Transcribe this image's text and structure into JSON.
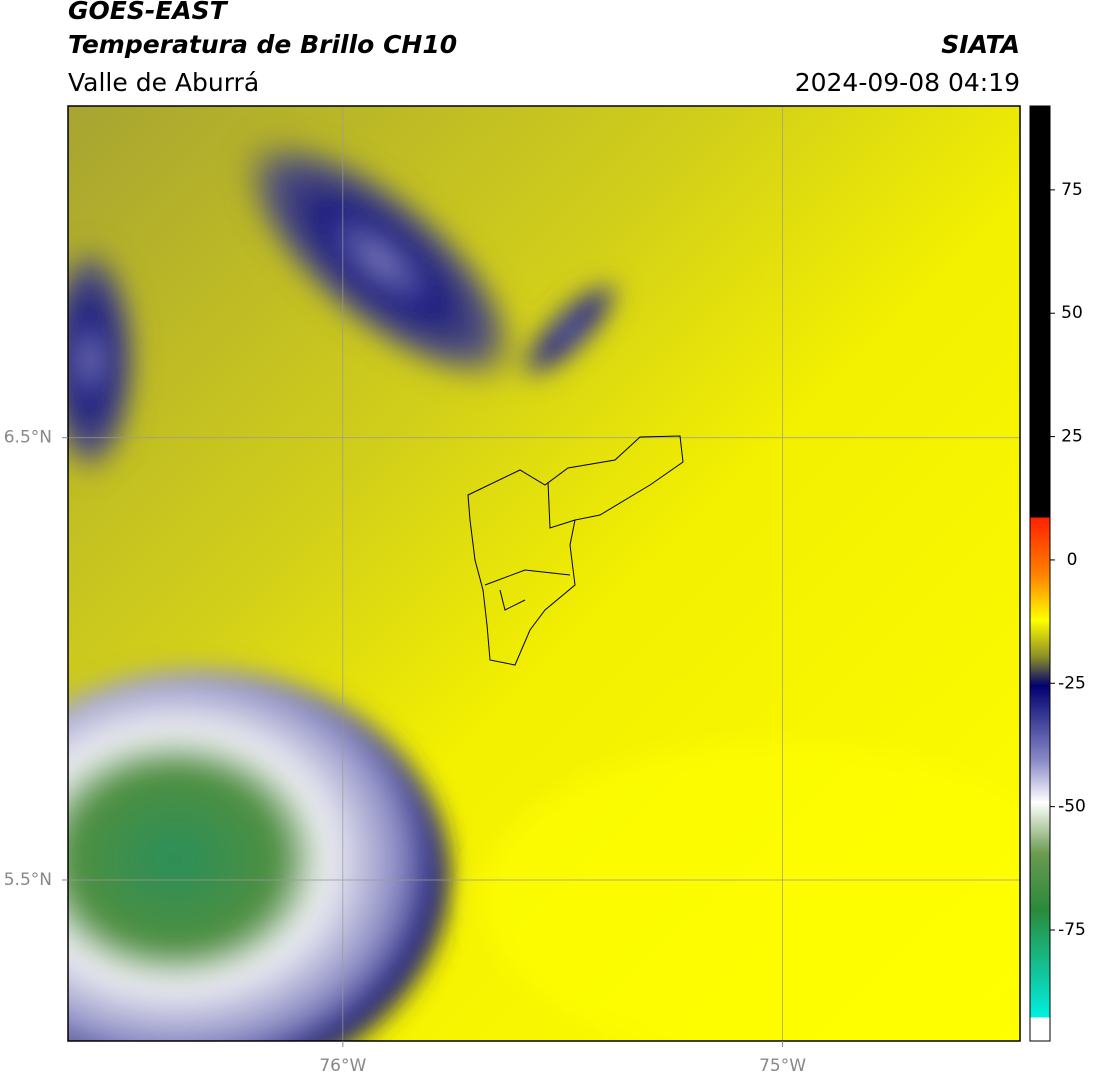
{
  "header": {
    "satellite": "GOES-EAST",
    "product": "Temperatura de Brillo CH10",
    "agency": "SIATA",
    "region": "Valle de Aburrá",
    "datetime": "2024-09-08 04:19"
  },
  "map": {
    "xlim": [
      -76.625,
      -74.46
    ],
    "ylim": [
      5.136,
      7.25
    ],
    "xticks": [
      {
        "value": -76,
        "label": "76°W"
      },
      {
        "value": -75,
        "label": "75°W"
      }
    ],
    "yticks": [
      {
        "value": 6.5,
        "label": "6.5°N"
      },
      {
        "value": 5.5,
        "label": "5.5°N"
      }
    ]
  },
  "colorbar": {
    "lim": [
      -97.5,
      92
    ],
    "ticks": [
      75,
      50,
      25,
      0,
      -25,
      -50,
      -75
    ]
  }
}
